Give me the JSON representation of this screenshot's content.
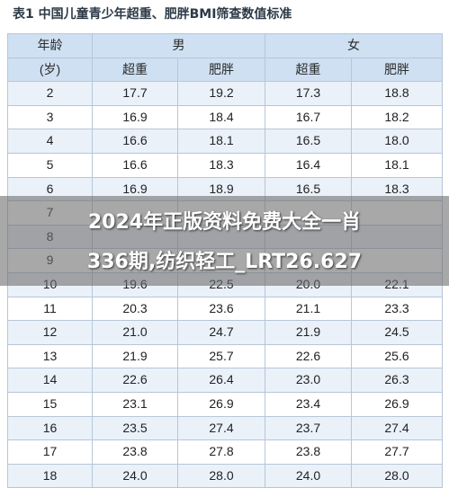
{
  "title": "表1 中国儿童青少年超重、肥胖BMI筛查数值标准",
  "header": {
    "age_label": "年龄",
    "age_unit": "(岁)",
    "male": "男",
    "female": "女",
    "overweight": "超重",
    "obese": "肥胖"
  },
  "rows": [
    {
      "age": "2",
      "m_ow": "17.7",
      "m_ob": "19.2",
      "f_ow": "17.3",
      "f_ob": "18.8"
    },
    {
      "age": "3",
      "m_ow": "16.9",
      "m_ob": "18.4",
      "f_ow": "16.7",
      "f_ob": "18.2"
    },
    {
      "age": "4",
      "m_ow": "16.6",
      "m_ob": "18.1",
      "f_ow": "16.5",
      "f_ob": "18.0"
    },
    {
      "age": "5",
      "m_ow": "16.6",
      "m_ob": "18.3",
      "f_ow": "16.4",
      "f_ob": "18.1"
    },
    {
      "age": "6",
      "m_ow": "16.9",
      "m_ob": "18.9",
      "f_ow": "16.5",
      "f_ob": "18.3"
    },
    {
      "age": "7",
      "m_ow": "",
      "m_ob": "",
      "f_ow": "",
      "f_ob": ""
    },
    {
      "age": "8",
      "m_ow": "",
      "m_ob": "",
      "f_ow": "",
      "f_ob": ""
    },
    {
      "age": "9",
      "m_ow": "",
      "m_ob": "",
      "f_ow": "",
      "f_ob": ""
    },
    {
      "age": "10",
      "m_ow": "19.6",
      "m_ob": "22.5",
      "f_ow": "20.0",
      "f_ob": "22.1"
    },
    {
      "age": "11",
      "m_ow": "20.3",
      "m_ob": "23.6",
      "f_ow": "21.1",
      "f_ob": "23.3"
    },
    {
      "age": "12",
      "m_ow": "21.0",
      "m_ob": "24.7",
      "f_ow": "21.9",
      "f_ob": "24.5"
    },
    {
      "age": "13",
      "m_ow": "21.9",
      "m_ob": "25.7",
      "f_ow": "22.6",
      "f_ob": "25.6"
    },
    {
      "age": "14",
      "m_ow": "22.6",
      "m_ob": "26.4",
      "f_ow": "23.0",
      "f_ob": "26.3"
    },
    {
      "age": "15",
      "m_ow": "23.1",
      "m_ob": "26.9",
      "f_ow": "23.4",
      "f_ob": "26.9"
    },
    {
      "age": "16",
      "m_ow": "23.5",
      "m_ob": "27.4",
      "f_ow": "23.7",
      "f_ob": "27.4"
    },
    {
      "age": "17",
      "m_ow": "23.8",
      "m_ob": "27.8",
      "f_ow": "23.8",
      "f_ob": "27.7"
    },
    {
      "age": "18",
      "m_ow": "24.0",
      "m_ob": "28.0",
      "f_ow": "24.0",
      "f_ob": "28.0"
    }
  ],
  "overlay": {
    "line1": "2024年正版资料免费大全一肖",
    "line2": "336期,纺织轻工_LRT26.627"
  }
}
